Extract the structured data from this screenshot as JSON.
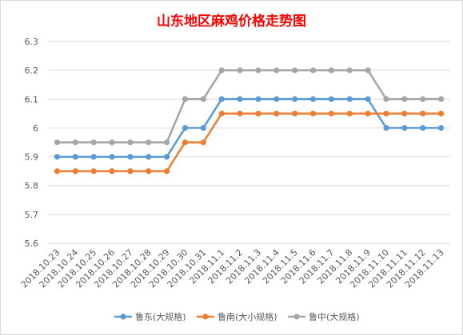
{
  "chart_data": {
    "type": "line",
    "title": "山东地区麻鸡价格走势图",
    "categories": [
      "2018.10.23",
      "2018.10.24",
      "2018.10.25",
      "2018.10.26",
      "2018.10.27",
      "2018.10.28",
      "2018.10.29",
      "2018.10.30",
      "2018.10.31",
      "2018.11.1",
      "2018.11.2",
      "2018.11.3",
      "2018.11.4",
      "2018.11.5",
      "2018.11.6",
      "2018.11.7",
      "2018.11.8",
      "2018.11.9",
      "2018.11.10",
      "2018.11.11",
      "2018.11.12",
      "2018.11.13"
    ],
    "series": [
      {
        "name": "鲁东(大规格)",
        "color": "#5b9bd5",
        "values": [
          5.9,
          5.9,
          5.9,
          5.9,
          5.9,
          5.9,
          5.9,
          6.0,
          6.0,
          6.1,
          6.1,
          6.1,
          6.1,
          6.1,
          6.1,
          6.1,
          6.1,
          6.1,
          6.0,
          6.0,
          6.0,
          6.0
        ]
      },
      {
        "name": "鲁南(大小规格)",
        "color": "#ed7d31",
        "values": [
          5.85,
          5.85,
          5.85,
          5.85,
          5.85,
          5.85,
          5.85,
          5.95,
          5.95,
          6.05,
          6.05,
          6.05,
          6.05,
          6.05,
          6.05,
          6.05,
          6.05,
          6.05,
          6.05,
          6.05,
          6.05,
          6.05
        ]
      },
      {
        "name": "鲁中(大规格)",
        "color": "#a5a5a5",
        "values": [
          5.95,
          5.95,
          5.95,
          5.95,
          5.95,
          5.95,
          5.95,
          6.1,
          6.1,
          6.2,
          6.2,
          6.2,
          6.2,
          6.2,
          6.2,
          6.2,
          6.2,
          6.2,
          6.1,
          6.1,
          6.1,
          6.1
        ]
      }
    ],
    "y_ticks": [
      "5.6",
      "5.7",
      "5.8",
      "5.9",
      "6",
      "6.1",
      "6.2",
      "6.3"
    ],
    "ylim": [
      5.6,
      6.3
    ],
    "grid": true,
    "legend_position": "bottom"
  }
}
